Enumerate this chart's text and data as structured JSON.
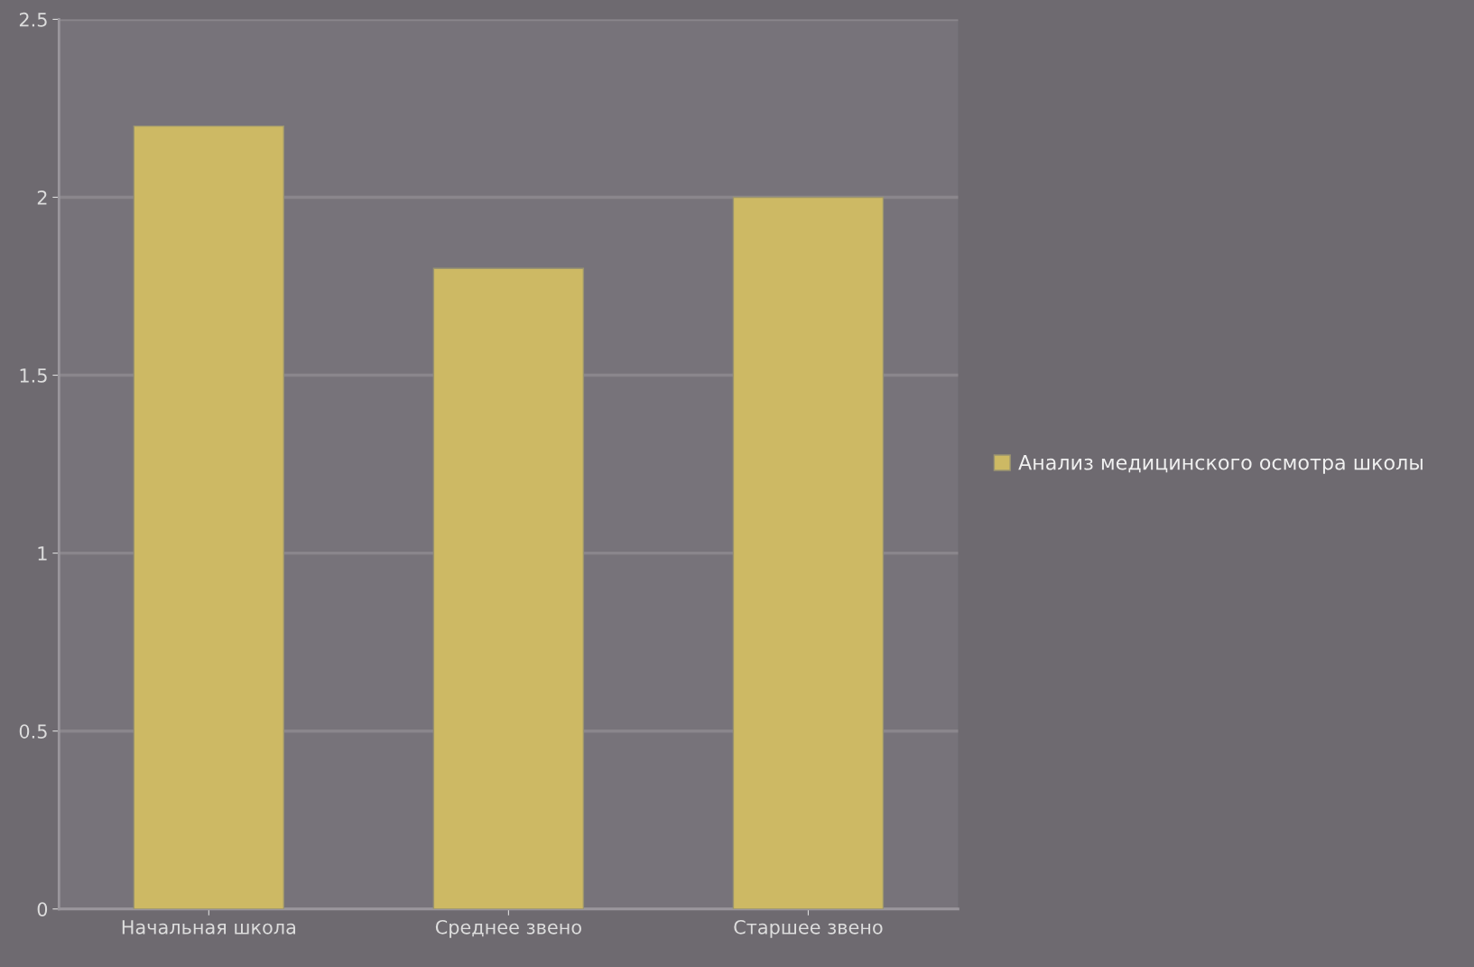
{
  "chart_data": {
    "type": "bar",
    "categories": [
      "Начальная школа",
      "Среднее звено",
      "Старшее звено"
    ],
    "series": [
      {
        "name": "Анализ медицинского осмотра школы",
        "color": "#cdb964",
        "values": [
          2.2,
          1.8,
          2.0
        ]
      }
    ],
    "ylim": [
      0,
      2.5
    ],
    "yticks": [
      0,
      0.5,
      1,
      1.5,
      2,
      2.5
    ],
    "grid": "y",
    "legend": "right"
  }
}
